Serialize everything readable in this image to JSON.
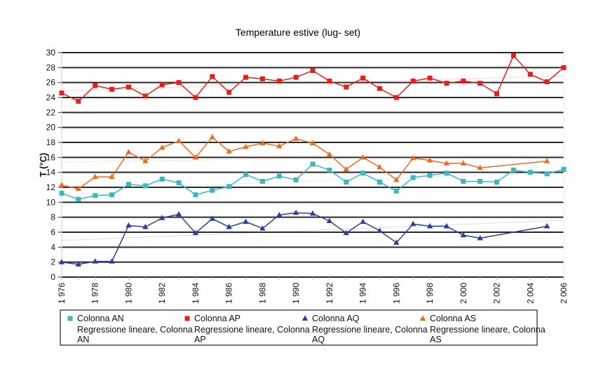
{
  "chart_data": {
    "type": "line",
    "title": "Temperature  estive (lug- set)",
    "xlabel": "",
    "ylabel": "T (°C)",
    "ylim": [
      0,
      30
    ],
    "yticks": [
      0,
      2,
      4,
      6,
      8,
      10,
      12,
      14,
      16,
      18,
      20,
      22,
      24,
      26,
      28,
      30
    ],
    "xlim": [
      1976,
      2006
    ],
    "xticks": [
      {
        "value": 1976,
        "label": "1 976"
      },
      {
        "value": 1978,
        "label": "1 978"
      },
      {
        "value": 1980,
        "label": "1 980"
      },
      {
        "value": 1982,
        "label": "1 982"
      },
      {
        "value": 1984,
        "label": "1 984"
      },
      {
        "value": 1986,
        "label": "1 986"
      },
      {
        "value": 1988,
        "label": "1 988"
      },
      {
        "value": 1990,
        "label": "1 990"
      },
      {
        "value": 1992,
        "label": "1 992"
      },
      {
        "value": 1994,
        "label": "1 994"
      },
      {
        "value": 1996,
        "label": "1 996"
      },
      {
        "value": 1998,
        "label": "1 998"
      },
      {
        "value": 2000,
        "label": "2 000"
      },
      {
        "value": 2002,
        "label": "2 002"
      },
      {
        "value": 2004,
        "label": "2 004"
      },
      {
        "value": 2006,
        "label": "2 006"
      }
    ],
    "grid": true,
    "legend_position": "bottom",
    "x": [
      1976,
      1977,
      1978,
      1979,
      1980,
      1981,
      1982,
      1983,
      1984,
      1985,
      1986,
      1987,
      1988,
      1989,
      1990,
      1991,
      1992,
      1993,
      1994,
      1995,
      1996,
      1997,
      1998,
      1999,
      2000,
      2001,
      2002,
      2003,
      2004,
      2005,
      2006
    ],
    "series": [
      {
        "name": "Colonna AN",
        "color": "#3eb6bf",
        "marker": "square",
        "values": [
          11.2,
          10.4,
          10.9,
          11.0,
          12.4,
          12.2,
          13.1,
          12.6,
          11.0,
          11.6,
          12.1,
          13.7,
          12.8,
          13.5,
          13.0,
          15.1,
          14.3,
          12.7,
          13.9,
          12.7,
          11.5,
          13.3,
          13.6,
          13.9,
          12.8,
          12.8,
          12.7,
          14.3,
          14.0,
          13.8,
          14.4
        ],
        "trend": {
          "name": "Regressione lineare, Colonna AN",
          "start": 11.6,
          "end": 14.1
        }
      },
      {
        "name": "Colonna AP",
        "color": "#e3201b",
        "marker": "square",
        "values": [
          24.6,
          23.5,
          25.6,
          25.1,
          25.4,
          24.2,
          25.7,
          26.0,
          24.0,
          26.8,
          24.7,
          26.7,
          26.5,
          26.2,
          26.7,
          27.6,
          26.2,
          25.4,
          26.6,
          25.2,
          24.0,
          26.2,
          26.6,
          25.9,
          26.2,
          25.9,
          24.5,
          29.6,
          27.1,
          26.1,
          28.0
        ],
        "trend": {
          "name": "Regressione lineare, Colonna AP",
          "start": 24.9,
          "end": 26.9
        }
      },
      {
        "name": "Colonna AQ",
        "color": "#2c3e9a",
        "marker": "triangle",
        "values": [
          2.0,
          1.7,
          2.1,
          2.1,
          6.9,
          6.7,
          7.9,
          8.4,
          5.9,
          7.8,
          6.7,
          7.4,
          6.5,
          8.3,
          8.6,
          8.5,
          7.5,
          5.9,
          7.4,
          6.2,
          4.6,
          7.1,
          6.8,
          6.8,
          5.6,
          5.2,
          null,
          null,
          null,
          6.8,
          null
        ],
        "trend": {
          "name": "Regressione lineare, Colonna AQ",
          "start": 4.9,
          "end": 7.6
        }
      },
      {
        "name": "Colonna AS",
        "color": "#ec6b1f",
        "marker": "triangle",
        "values": [
          12.3,
          11.8,
          13.4,
          13.4,
          16.7,
          15.5,
          17.3,
          18.2,
          16.0,
          18.7,
          16.8,
          17.4,
          17.9,
          17.5,
          18.5,
          17.9,
          16.4,
          14.4,
          16.0,
          14.7,
          13.0,
          15.9,
          15.6,
          15.2,
          15.2,
          14.6,
          null,
          null,
          null,
          15.5,
          null
        ],
        "trend": {
          "name": "Regressione lineare, Colonna AS",
          "start": 15.4,
          "end": 16.3
        }
      }
    ]
  }
}
